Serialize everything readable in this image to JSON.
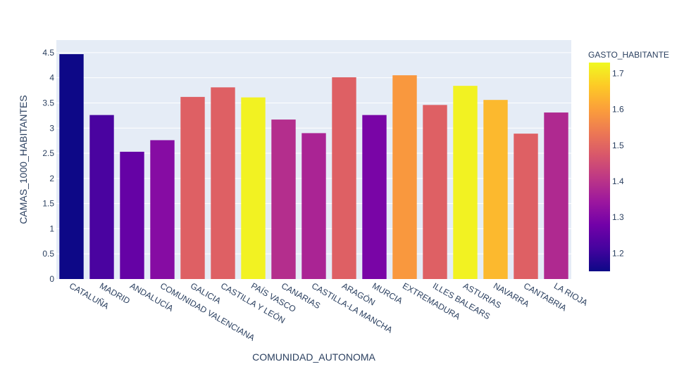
{
  "chart_data": {
    "type": "bar",
    "xlabel": "COMUNIDAD_AUTONOMA",
    "ylabel": "CAMAS_1000_HABITANTES",
    "ylim": [
      0,
      4.75
    ],
    "yticks": [
      0,
      0.5,
      1,
      1.5,
      2,
      2.5,
      3,
      3.5,
      4,
      4.5
    ],
    "ytick_labels": [
      "0",
      "0.5",
      "1",
      "1.5",
      "2",
      "2.5",
      "3",
      "3.5",
      "4",
      "4.5"
    ],
    "categories": [
      "CATALUÑA",
      "MADRID",
      "ANDALUCÍA",
      "COMUNIDAD VALENCIANA",
      "GALICIA",
      "CASTILLA Y LEÓN",
      "PAÍS VASCO",
      "CANARIAS",
      "CASTILLA-LA MANCHA",
      "ARAGÓN",
      "MURCIA",
      "EXTREMADURA",
      "ILLES BALEARS",
      "ASTURIAS",
      "NAVARRA",
      "CANTABRIA",
      "LA RIOJA"
    ],
    "values": [
      4.47,
      3.26,
      2.53,
      2.76,
      3.62,
      3.81,
      3.61,
      3.17,
      2.9,
      4.01,
      3.26,
      4.05,
      3.46,
      3.84,
      3.56,
      2.89,
      3.31
    ],
    "color_values": [
      1.15,
      1.22,
      1.26,
      1.31,
      1.49,
      1.49,
      1.72,
      1.39,
      1.37,
      1.49,
      1.29,
      1.59,
      1.49,
      1.72,
      1.64,
      1.49,
      1.38
    ],
    "grid": true,
    "colorbar": {
      "title": "GASTO_HABITANTE",
      "range": [
        1.15,
        1.73
      ],
      "ticks": [
        1.2,
        1.3,
        1.4,
        1.5,
        1.6,
        1.7
      ],
      "tick_labels": [
        "1.2",
        "1.3",
        "1.4",
        "1.5",
        "1.6",
        "1.7"
      ],
      "colorscale": [
        "#0d0887",
        "#46039f",
        "#7201a8",
        "#9c179e",
        "#bd3786",
        "#d8576b",
        "#ed7953",
        "#fb9f3a",
        "#fdca26",
        "#f0f921"
      ],
      "placement": "right"
    }
  }
}
